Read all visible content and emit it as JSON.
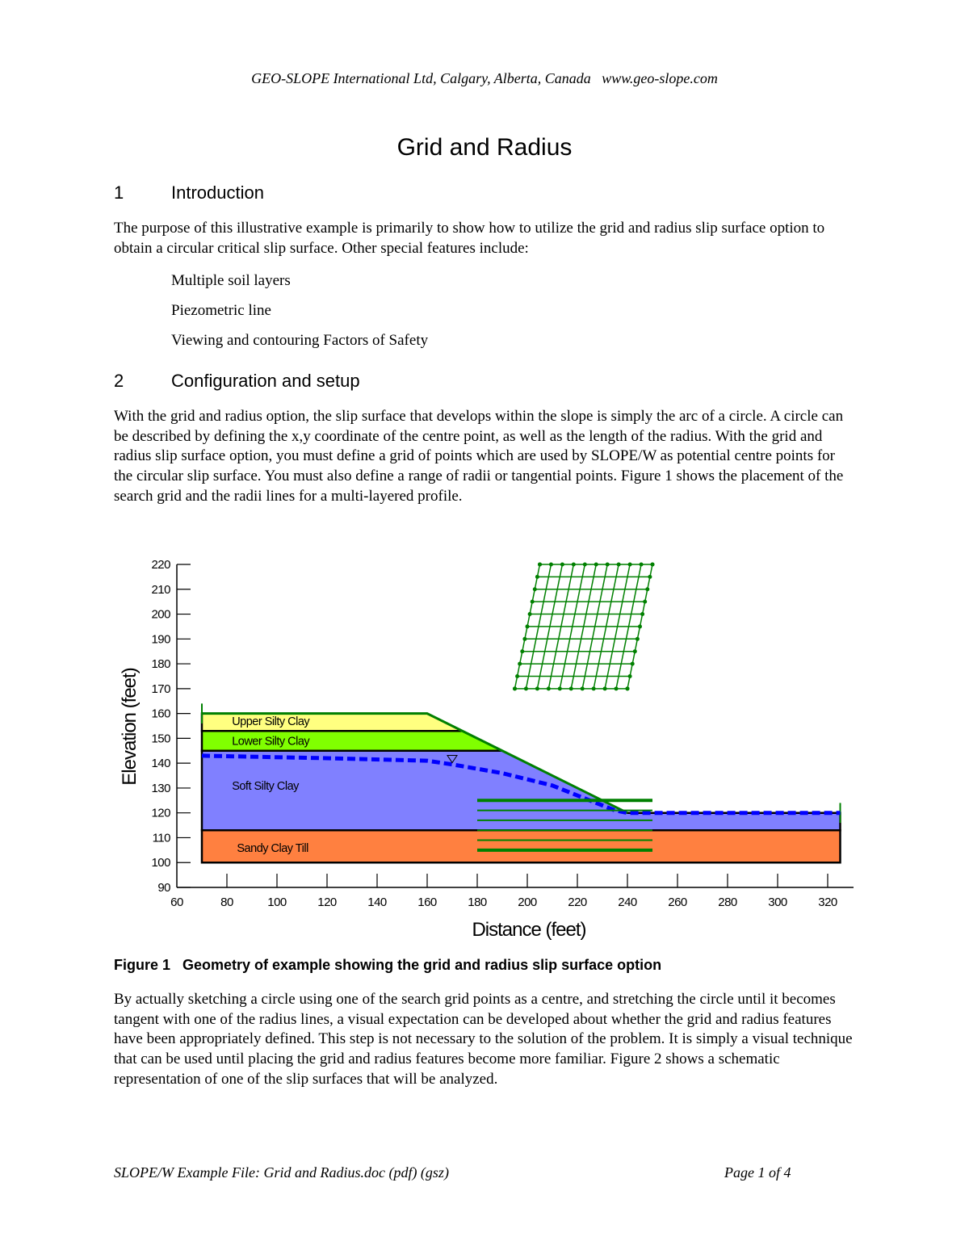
{
  "header": "GEO-SLOPE International Ltd, Calgary, Alberta, Canada   www.geo-slope.com",
  "title": "Grid and Radius",
  "sections": [
    {
      "num": "1",
      "heading": "Introduction"
    },
    {
      "num": "2",
      "heading": "Configuration and setup"
    }
  ],
  "intro_paragraph": "The purpose of this illustrative example is primarily to show how to utilize the grid and radius slip surface option to obtain a circular critical slip surface. Other special features include:",
  "features": [
    "Multiple soil layers",
    "Piezometric line",
    "Viewing and contouring Factors of Safety"
  ],
  "config_paragraph": "With the grid and radius option, the slip surface that develops within the slope is simply the arc of a circle. A circle can be described by defining the x,y coordinate of the centre point, as well as the length of the radius. With the grid and radius slip surface option, you must define a grid of points which are used by SLOPE/W as potential centre points for the circular slip surface. You must also define a range of radii or tangential points. Figure 1 shows the placement of the search grid and the radii lines for a multi-layered profile.",
  "figure_caption": "Figure 1   Geometry of example showing the grid and radius slip surface option",
  "after_paragraph": "By actually sketching a circle using one of the search grid points as a centre, and stretching the circle until it becomes tangent with one of the radius lines, a visual expectation can be developed about whether the grid and radius features have been appropriately defined. This step is not necessary to the solution of the problem. It is simply a visual technique that can be used until placing the grid and radius features become more familiar. Figure 2 shows a schematic representation of one of the slip surfaces that will be analyzed.",
  "footer": {
    "left": "SLOPE/W Example File: Grid and Radius.doc (pdf) (gsz)",
    "right": "Page 1 of 4"
  },
  "chart_data": {
    "type": "geometry",
    "xlabel": "Distance (feet)",
    "ylabel": "Elevation (feet)",
    "xlim": [
      60,
      320
    ],
    "ylim": [
      90,
      220
    ],
    "xticks": [
      60,
      80,
      100,
      120,
      140,
      160,
      180,
      200,
      220,
      240,
      260,
      280,
      300,
      320
    ],
    "yticks": [
      90,
      100,
      110,
      120,
      130,
      140,
      150,
      160,
      170,
      180,
      190,
      200,
      210,
      220
    ],
    "layers": [
      {
        "name": "Upper Silty Clay",
        "color": "#ffff80",
        "polygon": [
          [
            70,
            160
          ],
          [
            160,
            160
          ],
          [
            174,
            153
          ],
          [
            70,
            153
          ]
        ]
      },
      {
        "name": "Lower Silty Clay",
        "color": "#80ff00",
        "polygon": [
          [
            70,
            153
          ],
          [
            174,
            153
          ],
          [
            190,
            145
          ],
          [
            70,
            145
          ]
        ]
      },
      {
        "name": "Soft Silty Clay",
        "color": "#8080ff",
        "polygon": [
          [
            70,
            145
          ],
          [
            190,
            145
          ],
          [
            240,
            120
          ],
          [
            325,
            120
          ],
          [
            325,
            113
          ],
          [
            70,
            113
          ]
        ]
      },
      {
        "name": "Sandy Clay Till",
        "color": "#ff8040",
        "polygon": [
          [
            70,
            113
          ],
          [
            325,
            113
          ],
          [
            325,
            100
          ],
          [
            70,
            100
          ]
        ]
      }
    ],
    "ground_surface": [
      [
        70,
        160
      ],
      [
        160,
        160
      ],
      [
        240,
        120
      ],
      [
        325,
        120
      ]
    ],
    "piezometric_line": {
      "color": "#0000ff",
      "points": [
        [
          70,
          143
        ],
        [
          120,
          142
        ],
        [
          160,
          141
        ],
        [
          170,
          139.5
        ],
        [
          190,
          136
        ],
        [
          210,
          131
        ],
        [
          225,
          125
        ],
        [
          235,
          121
        ],
        [
          240,
          120
        ],
        [
          325,
          120
        ]
      ]
    },
    "search_grid": {
      "color": "#008000",
      "rows": 11,
      "cols": 11,
      "top_left": [
        205,
        220
      ],
      "top_right": [
        250,
        220
      ],
      "bottom_left": [
        195,
        170
      ],
      "bottom_right": [
        240,
        170
      ]
    },
    "radius_lines": {
      "color": "#008000",
      "x_range": [
        180,
        250
      ],
      "elevations": [
        125,
        121,
        117,
        113,
        109,
        105
      ]
    }
  }
}
